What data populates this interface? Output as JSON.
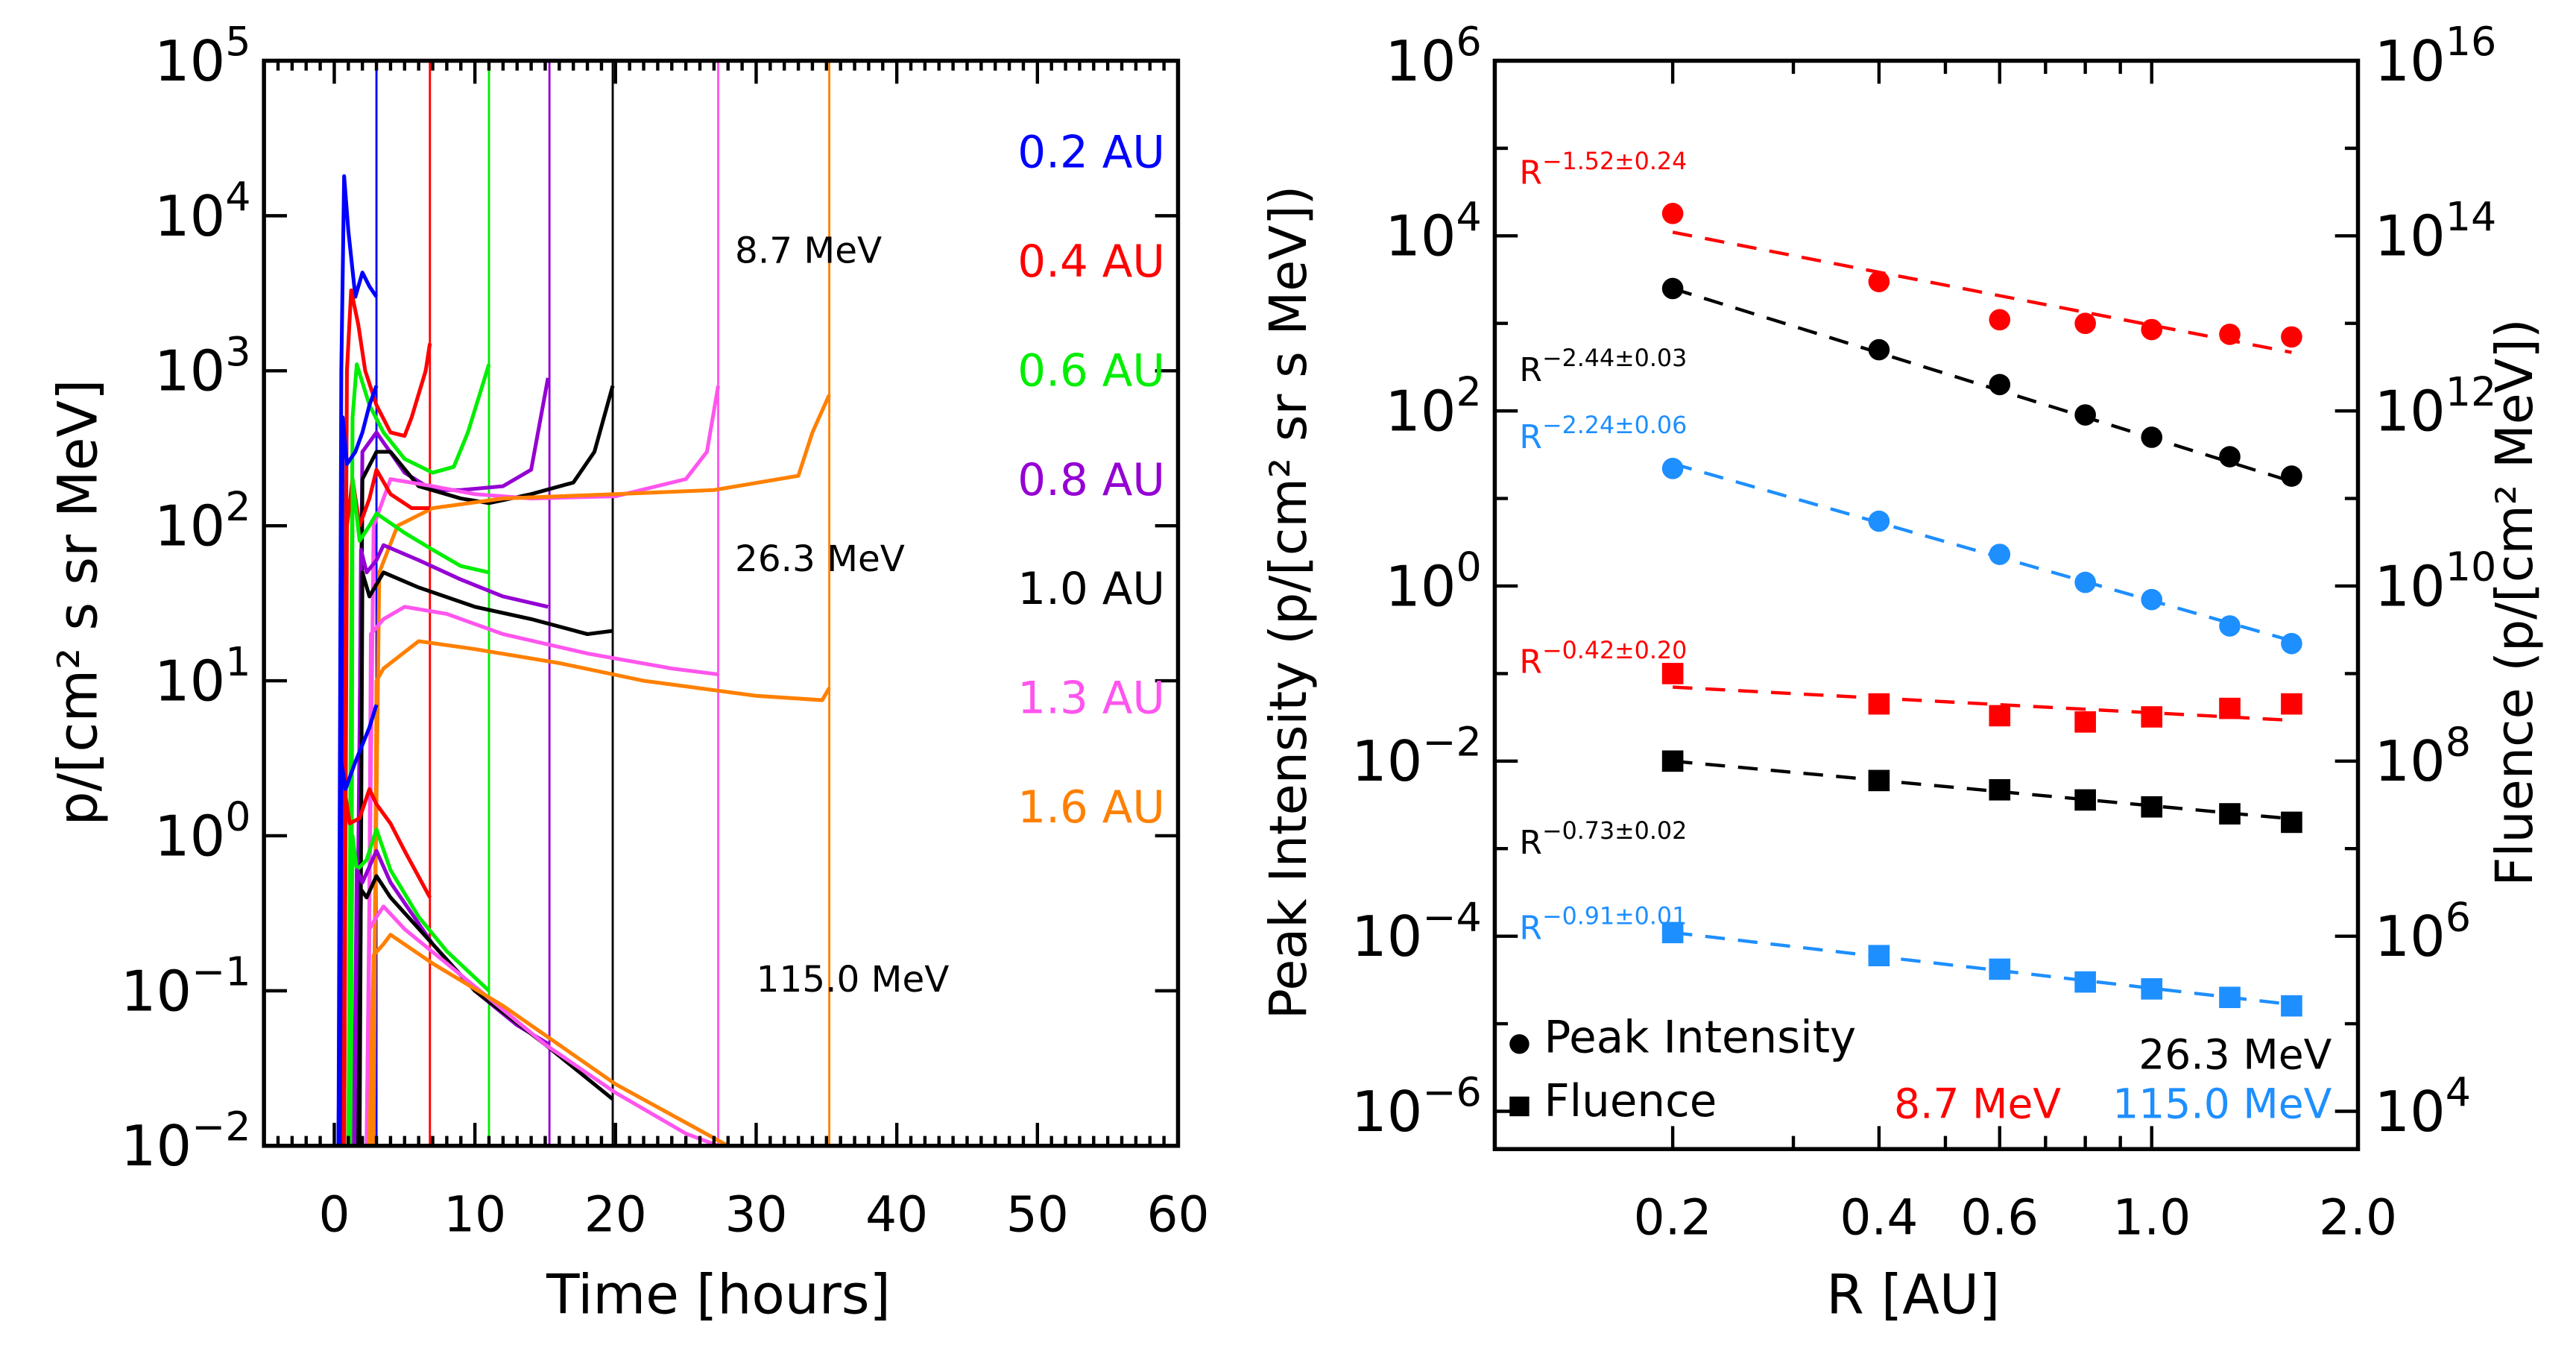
{
  "chart_data": [
    {
      "type": "line",
      "xlabel": "Time [hours]",
      "ylabel": "p/[cm² s sr MeV]",
      "xlim": [
        -5,
        60
      ],
      "ylim": [
        0.01,
        100000
      ],
      "yscale": "log",
      "xticks": [
        "0",
        "10",
        "20",
        "30",
        "40",
        "50",
        "60"
      ],
      "yticks": [
        {
          "b": "10",
          "e": "5"
        },
        {
          "b": "10",
          "e": "4"
        },
        {
          "b": "10",
          "e": "3"
        },
        {
          "b": "10",
          "e": "2"
        },
        {
          "b": "10",
          "e": "1"
        },
        {
          "b": "10",
          "e": "0"
        },
        {
          "b": "10",
          "e": "−1"
        },
        {
          "b": "10",
          "e": "−2"
        }
      ],
      "energy_labels": [
        "8.7 MeV",
        "26.3 MeV",
        "115.0 MeV"
      ],
      "legend": [
        {
          "name": "0.2 AU",
          "color": "#0000ff",
          "end_time": 3.0
        },
        {
          "name": "0.4 AU",
          "color": "#ff0000",
          "end_time": 6.8
        },
        {
          "name": "0.6 AU",
          "color": "#00ee00",
          "end_time": 11.0
        },
        {
          "name": "0.8 AU",
          "color": "#9400d3",
          "end_time": 15.3
        },
        {
          "name": "1.0 AU",
          "color": "#000000",
          "end_time": 19.8
        },
        {
          "name": "1.3 AU",
          "color": "#ff55ee",
          "end_time": 27.3
        },
        {
          "name": "1.6 AU",
          "color": "#ff8000",
          "end_time": 35.2
        }
      ],
      "series": {
        "8.7 MeV": [
          [
            [
              0.3,
              0.01
            ],
            [
              0.5,
              1000
            ],
            [
              0.7,
              18000
            ],
            [
              1,
              8000
            ],
            [
              1.5,
              3000
            ],
            [
              2,
              4300
            ],
            [
              2.5,
              3500
            ],
            [
              3,
              3000
            ]
          ],
          [
            [
              0.6,
              0.01
            ],
            [
              0.9,
              1000
            ],
            [
              1.2,
              3300
            ],
            [
              1.7,
              2000
            ],
            [
              2.2,
              1000
            ],
            [
              3,
              600
            ],
            [
              4,
              400
            ],
            [
              5,
              380
            ],
            [
              5.5,
              500
            ],
            [
              6.5,
              1000
            ],
            [
              6.8,
              1500
            ]
          ],
          [
            [
              1,
              0.01
            ],
            [
              1.3,
              500
            ],
            [
              1.6,
              1100
            ],
            [
              2.5,
              600
            ],
            [
              3.5,
              400
            ],
            [
              5,
              270
            ],
            [
              7,
              220
            ],
            [
              8.5,
              240
            ],
            [
              9.5,
              400
            ],
            [
              11,
              1100
            ]
          ],
          [
            [
              1.5,
              0.01
            ],
            [
              2,
              300
            ],
            [
              3,
              400
            ],
            [
              5,
              220
            ],
            [
              7,
              170
            ],
            [
              9,
              170
            ],
            [
              12,
              180
            ],
            [
              14,
              230
            ],
            [
              15.2,
              900
            ]
          ],
          [
            [
              1.7,
              0.01
            ],
            [
              2,
              200
            ],
            [
              3,
              300
            ],
            [
              4,
              300
            ],
            [
              6,
              180
            ],
            [
              9,
              150
            ],
            [
              11,
              140
            ],
            [
              14,
              160
            ],
            [
              17,
              190
            ],
            [
              18.5,
              300
            ],
            [
              19.8,
              800
            ]
          ],
          [
            [
              2.3,
              0.01
            ],
            [
              2.8,
              100
            ],
            [
              4,
              200
            ],
            [
              7,
              180
            ],
            [
              10,
              160
            ],
            [
              14,
              150
            ],
            [
              20,
              155
            ],
            [
              25,
              200
            ],
            [
              26.5,
              300
            ],
            [
              27.3,
              800
            ]
          ],
          [
            [
              2.7,
              0.01
            ],
            [
              3.2,
              50
            ],
            [
              4.5,
              100
            ],
            [
              7,
              130
            ],
            [
              12,
              150
            ],
            [
              20,
              160
            ],
            [
              27,
              170
            ],
            [
              33,
              210
            ],
            [
              34,
              400
            ],
            [
              35.2,
              700
            ]
          ]
        ],
        "26.3 MeV": [
          [
            [
              0.4,
              0.01
            ],
            [
              0.6,
              500
            ],
            [
              0.9,
              250
            ],
            [
              1.5,
              300
            ],
            [
              2,
              400
            ],
            [
              2.5,
              600
            ],
            [
              3,
              800
            ]
          ],
          [
            [
              0.7,
              0.01
            ],
            [
              0.9,
              100
            ],
            [
              1.3,
              200
            ],
            [
              1.8,
              100
            ],
            [
              2.5,
              150
            ],
            [
              3,
              230
            ],
            [
              4,
              160
            ],
            [
              5.5,
              130
            ],
            [
              6.8,
              130
            ]
          ],
          [
            [
              1.2,
              0.01
            ],
            [
              1.3,
              200
            ],
            [
              1.8,
              80
            ],
            [
              2.5,
              100
            ],
            [
              3,
              120
            ],
            [
              5,
              90
            ],
            [
              7,
              70
            ],
            [
              9,
              55
            ],
            [
              11,
              50
            ]
          ],
          [
            [
              1.6,
              0.01
            ],
            [
              1.9,
              70
            ],
            [
              2.3,
              50
            ],
            [
              3,
              60
            ],
            [
              3.5,
              75
            ],
            [
              6,
              60
            ],
            [
              9,
              45
            ],
            [
              12,
              35
            ],
            [
              15.2,
              30
            ]
          ],
          [
            [
              1.8,
              0.01
            ],
            [
              2,
              50
            ],
            [
              2.5,
              35
            ],
            [
              3.5,
              50
            ],
            [
              6,
              40
            ],
            [
              10,
              30
            ],
            [
              14,
              25
            ],
            [
              18,
              20
            ],
            [
              19.8,
              21
            ]
          ],
          [
            [
              2.4,
              0.01
            ],
            [
              2.6,
              20
            ],
            [
              3.5,
              25
            ],
            [
              5,
              30
            ],
            [
              8,
              27
            ],
            [
              12,
              20
            ],
            [
              18,
              15
            ],
            [
              24,
              12
            ],
            [
              27.3,
              11
            ]
          ],
          [
            [
              2.8,
              0.01
            ],
            [
              3,
              10
            ],
            [
              3.5,
              12
            ],
            [
              6,
              18
            ],
            [
              10,
              16
            ],
            [
              16,
              13
            ],
            [
              22,
              10
            ],
            [
              30,
              8
            ],
            [
              34.7,
              7.5
            ],
            [
              35.2,
              9
            ]
          ]
        ],
        "115.0 MeV": [
          [
            [
              0.3,
              0.01
            ],
            [
              0.5,
              3
            ],
            [
              0.8,
              2
            ],
            [
              1.5,
              3
            ],
            [
              2.5,
              5
            ],
            [
              3,
              7
            ]
          ],
          [
            [
              0.7,
              0.01
            ],
            [
              0.8,
              1.8
            ],
            [
              1.1,
              1.2
            ],
            [
              1.8,
              1.3
            ],
            [
              2.5,
              2
            ],
            [
              3,
              1.6
            ],
            [
              4,
              1.2
            ],
            [
              5,
              0.8
            ],
            [
              6.8,
              0.4
            ]
          ],
          [
            [
              1.1,
              0.01
            ],
            [
              1.3,
              1
            ],
            [
              1.6,
              0.6
            ],
            [
              2.3,
              0.7
            ],
            [
              3,
              1.1
            ],
            [
              4,
              0.6
            ],
            [
              6,
              0.3
            ],
            [
              8,
              0.18
            ],
            [
              11,
              0.1
            ]
          ],
          [
            [
              1.4,
              0.01
            ],
            [
              1.6,
              0.6
            ],
            [
              2,
              0.5
            ],
            [
              3,
              0.8
            ],
            [
              4,
              0.5
            ],
            [
              7,
              0.2
            ],
            [
              10,
              0.1
            ],
            [
              13,
              0.06
            ],
            [
              15.3,
              0.045
            ]
          ],
          [
            [
              1.7,
              0.01
            ],
            [
              1.9,
              0.45
            ],
            [
              2.3,
              0.4
            ],
            [
              3,
              0.55
            ],
            [
              4,
              0.4
            ],
            [
              7,
              0.2
            ],
            [
              10,
              0.1
            ],
            [
              15,
              0.045
            ],
            [
              19.8,
              0.02
            ]
          ],
          [
            [
              2.3,
              0.01
            ],
            [
              2.5,
              0.25
            ],
            [
              3,
              0.3
            ],
            [
              3.5,
              0.35
            ],
            [
              5,
              0.25
            ],
            [
              8,
              0.15
            ],
            [
              15,
              0.045
            ],
            [
              20,
              0.022
            ],
            [
              25,
              0.012
            ],
            [
              27.3,
              0.0095
            ]
          ],
          [
            [
              2.5,
              0.01
            ],
            [
              2.8,
              0.17
            ],
            [
              3.5,
              0.2
            ],
            [
              4,
              0.23
            ],
            [
              7,
              0.15
            ],
            [
              12,
              0.08
            ],
            [
              20,
              0.025
            ],
            [
              28,
              0.0095
            ]
          ]
        ]
      }
    },
    {
      "type": "scatter",
      "xlabel": "R [AU]",
      "ylabel": "Peak Intensity (p/[cm² sr s MeV])",
      "ylabel_right": "Fluence (p/[cm² MeV])",
      "xscale": "log",
      "yscale": "log",
      "xlim": [
        0.11,
        2.0
      ],
      "ylim": [
        3.7e-07,
        1000000
      ],
      "ylim_right": [
        3700.0,
        1e+16
      ],
      "xticks": [
        "0.2",
        "0.4",
        "0.6",
        "1.0",
        "2.0"
      ],
      "yticks": [
        {
          "b": "10",
          "e": "6"
        },
        {
          "b": "10",
          "e": "4"
        },
        {
          "b": "10",
          "e": "2"
        },
        {
          "b": "10",
          "e": "0"
        },
        {
          "b": "10",
          "e": "−2"
        },
        {
          "b": "10",
          "e": "−4"
        },
        {
          "b": "10",
          "e": "−6"
        }
      ],
      "yticks_right": [
        {
          "b": "10",
          "e": "16"
        },
        {
          "b": "10",
          "e": "14"
        },
        {
          "b": "10",
          "e": "12"
        },
        {
          "b": "10",
          "e": "10"
        },
        {
          "b": "10",
          "e": "8"
        },
        {
          "b": "10",
          "e": "6"
        },
        {
          "b": "10",
          "e": "4"
        }
      ],
      "R": [
        0.2,
        0.4,
        0.6,
        0.8,
        1.0,
        1.3,
        1.6
      ],
      "series": [
        {
          "kind": "peak",
          "energy": "8.7 MeV",
          "color": "#ff0000",
          "values": [
            18000,
            3000,
            1100,
            1000,
            850,
            750,
            700
          ],
          "fit_label": {
            "b": "R",
            "e": "−1.52±0.24"
          },
          "fit_at_0_2": 11000,
          "index": -1.52
        },
        {
          "kind": "peak",
          "energy": "26.3 MeV",
          "color": "#000000",
          "values": [
            2500,
            500,
            200,
            90,
            50,
            30,
            18
          ],
          "fit_label": {
            "b": "R",
            "e": "−2.44±0.03"
          },
          "fit_at_0_2": 2500,
          "index": -2.44
        },
        {
          "kind": "peak",
          "energy": "115.0 MeV",
          "color": "#1e8fff",
          "values": [
            22,
            5.5,
            2.3,
            1.1,
            0.7,
            0.35,
            0.22
          ],
          "fit_label": {
            "b": "R",
            "e": "−2.24±0.06"
          },
          "fit_at_0_2": 25,
          "index": -2.24
        },
        {
          "kind": "fluence",
          "energy": "8.7 MeV",
          "color": "#ff0000",
          "values": [
            1000000000.0,
            450000000.0,
            330000000.0,
            280000000.0,
            320000000.0,
            400000000.0,
            450000000.0
          ],
          "fit_label": {
            "b": "R",
            "e": "−0.42±0.20"
          },
          "fit_at_0_2": 700000000.0,
          "index": -0.42
        },
        {
          "kind": "fluence",
          "energy": "26.3 MeV",
          "color": "#000000",
          "values": [
            100000000.0,
            60000000.0,
            47000000.0,
            36000000.0,
            30000000.0,
            25000000.0,
            20000000.0
          ],
          "fit_label": {
            "b": "R",
            "e": "−0.73±0.02"
          },
          "fit_at_0_2": 100000000.0,
          "index": -0.73
        },
        {
          "kind": "fluence",
          "energy": "115.0 MeV",
          "color": "#1e8fff",
          "values": [
            1100000.0,
            600000.0,
            420000.0,
            300000.0,
            250000.0,
            200000.0,
            160000.0
          ],
          "fit_label": {
            "b": "R",
            "e": "−0.91±0.01"
          },
          "fit_at_0_2": 1100000.0,
          "index": -0.91
        }
      ],
      "legend": {
        "peak": "Peak Intensity",
        "fluence": "Fluence"
      },
      "energy_legend": [
        {
          "text": "26.3 MeV",
          "color": "#000000"
        },
        {
          "text": "8.7 MeV",
          "color": "#ff0000"
        },
        {
          "text": "115.0 MeV",
          "color": "#1e8fff"
        }
      ]
    }
  ]
}
